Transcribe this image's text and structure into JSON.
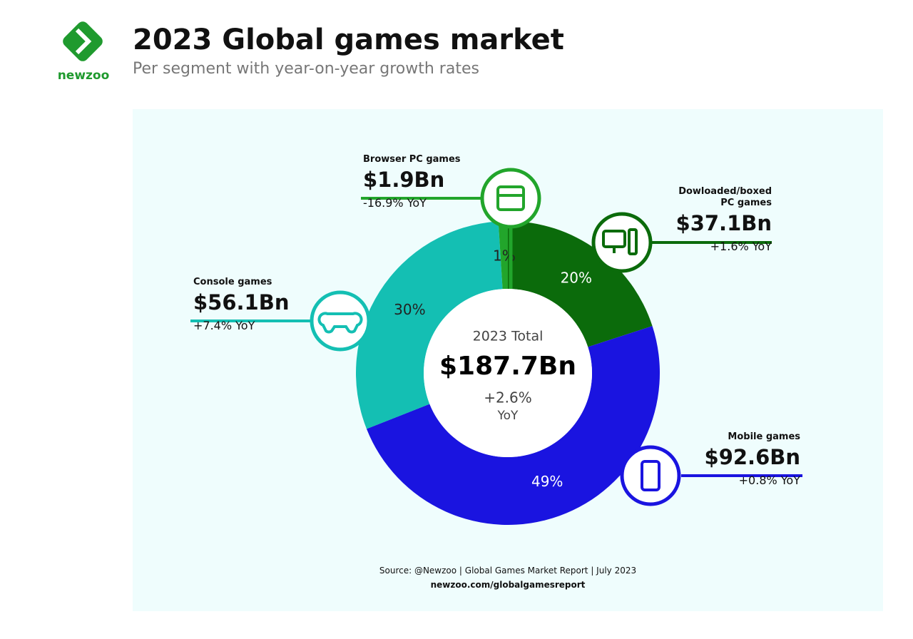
{
  "logo": "newzoo",
  "chart_data": {
    "type": "pie",
    "title": "2023 Global games market",
    "subtitle": "Per segment with year-on-year growth rates",
    "categories": [
      "Dowloaded/boxed PC games",
      "Mobile games",
      "Console games",
      "Browser PC games"
    ],
    "values": [
      20,
      49,
      30,
      1
    ],
    "value_labels": [
      "20%",
      "49%",
      "30%",
      "1%"
    ],
    "colors": [
      "#0b6b0b",
      "#1a14e0",
      "#14bfb3",
      "#22a52b"
    ],
    "amounts": [
      "$37.1Bn",
      "$92.6Bn",
      "$56.1Bn",
      "$1.9Bn"
    ],
    "growth": [
      "+1.6% YoY",
      "+0.8% YoY",
      "+7.4% YoY",
      "-16.9% YoY"
    ],
    "center": {
      "label": "2023 Total",
      "total": "$187.7Bn",
      "growth": "+2.6%",
      "unit": "YoY"
    },
    "source": [
      "Source: @Newzoo | Global Games Market Report | July 2023",
      "newzoo.com/globalgamesreport"
    ]
  }
}
